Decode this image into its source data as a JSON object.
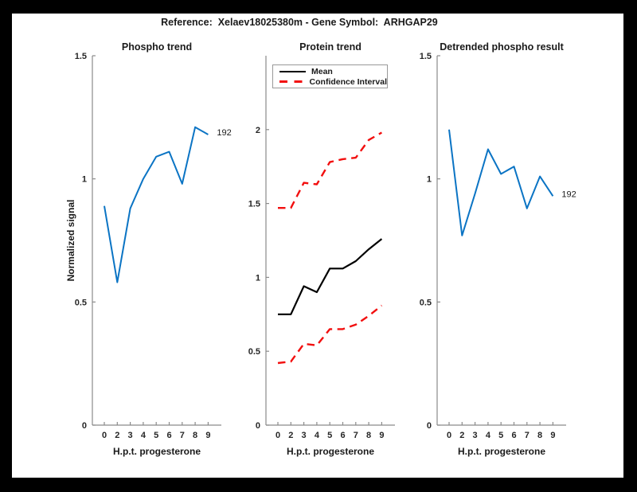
{
  "window": {
    "background_color": "#000000",
    "canvas_color": "#ffffff"
  },
  "header": {
    "title": "Reference:  Xelaev18025380m - Gene Symbol:  ARHGAP29"
  },
  "colors": {
    "phospho_line": "#0b74c4",
    "mean_line": "#000000",
    "confidence_line": "#f20f0f",
    "axis": "#8a8a8a",
    "text": "#262626"
  },
  "chart_data": [
    {
      "type": "line",
      "title": "Phospho trend",
      "xlabel": "H.p.t. progesterone",
      "ylabel": "Normalized signal",
      "x_tick_labels": [
        "0",
        "2",
        "3",
        "4",
        "5",
        "6",
        "7",
        "8",
        "9"
      ],
      "ylim": [
        0,
        1.5
      ],
      "y_ticks": [
        0,
        0.5,
        1,
        1.5
      ],
      "grid": false,
      "legend": null,
      "series": [
        {
          "name": "phospho-signal",
          "color": "#0b74c4",
          "dash": "solid",
          "width": 2,
          "values": [
            0.89,
            0.58,
            0.88,
            1.0,
            1.09,
            1.11,
            0.98,
            1.21,
            1.18
          ]
        }
      ],
      "annotation": {
        "text": "192",
        "position": "end-of-line"
      }
    },
    {
      "type": "line",
      "title": "Protein trend",
      "xlabel": "H.p.t. progesterone",
      "ylabel": "",
      "x_tick_labels": [
        "0",
        "2",
        "3",
        "4",
        "5",
        "6",
        "7",
        "8",
        "9"
      ],
      "ylim": [
        0,
        2.5
      ],
      "y_ticks": [
        0,
        0.5,
        1,
        1.5,
        2
      ],
      "grid": false,
      "legend": {
        "position": "top-left",
        "entries": [
          {
            "label": "Mean",
            "color": "#000000",
            "dash": "solid"
          },
          {
            "label": "Confidence Interval",
            "color": "#f20f0f",
            "dash": "dashed"
          }
        ]
      },
      "series": [
        {
          "name": "mean",
          "color": "#000000",
          "dash": "solid",
          "width": 2.2,
          "values": [
            0.75,
            0.75,
            0.94,
            0.9,
            1.06,
            1.06,
            1.11,
            1.19,
            1.26
          ]
        },
        {
          "name": "confidence-upper",
          "color": "#f20f0f",
          "dash": "dashed",
          "width": 2.4,
          "values": [
            1.47,
            1.47,
            1.64,
            1.63,
            1.78,
            1.8,
            1.81,
            1.93,
            1.98
          ]
        },
        {
          "name": "confidence-lower",
          "color": "#f20f0f",
          "dash": "dashed",
          "width": 2.4,
          "values": [
            0.42,
            0.43,
            0.55,
            0.54,
            0.65,
            0.65,
            0.68,
            0.74,
            0.81
          ]
        }
      ],
      "annotation": null
    },
    {
      "type": "line",
      "title": "Detrended phospho result",
      "xlabel": "H.p.t. progesterone",
      "ylabel": "",
      "x_tick_labels": [
        "0",
        "2",
        "3",
        "4",
        "5",
        "6",
        "7",
        "8",
        "9"
      ],
      "ylim": [
        0,
        1.5
      ],
      "y_ticks": [
        0,
        0.5,
        1,
        1.5
      ],
      "grid": false,
      "legend": null,
      "series": [
        {
          "name": "detrended-phospho",
          "color": "#0b74c4",
          "dash": "solid",
          "width": 2,
          "values": [
            1.2,
            0.77,
            0.94,
            1.12,
            1.02,
            1.05,
            0.88,
            1.01,
            0.93
          ]
        }
      ],
      "annotation": {
        "text": "192",
        "position": "end-of-line"
      }
    }
  ]
}
